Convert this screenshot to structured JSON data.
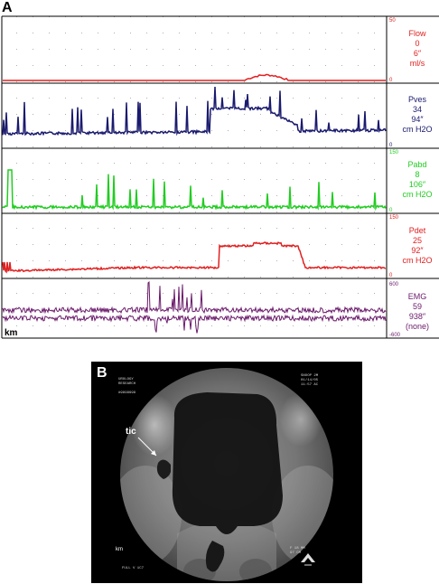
{
  "panel_a": {
    "letter": "A",
    "km_label": "km",
    "channels": [
      {
        "name": "Flow",
        "value": "0",
        "scale": "6″",
        "unit": "ml/s",
        "scale_top": "50",
        "scale_bottom": "0",
        "color": "#e02020"
      },
      {
        "name": "Pves",
        "value": "34",
        "scale": "94″",
        "unit": "cm H2O",
        "scale_top": "",
        "scale_bottom": "0",
        "color": "#1a1a6e"
      },
      {
        "name": "Pabd",
        "value": "8",
        "scale": "106″",
        "unit": "cm H2O",
        "scale_top": "150",
        "scale_bottom": "0",
        "color": "#22cc22"
      },
      {
        "name": "Pdet",
        "value": "25",
        "scale": "92″",
        "unit": "cm H2O",
        "scale_top": "150",
        "scale_bottom": "0",
        "color": "#e02020"
      },
      {
        "name": "EMG",
        "value": "59",
        "scale": "938″",
        "unit": "(none)",
        "scale_top": "600",
        "scale_bottom": "-600",
        "color": "#6a1a6a"
      }
    ]
  },
  "panel_b": {
    "letter": "B",
    "tic_label": "tic",
    "km_label": "km",
    "overlay_tl": "UROLOGY\nRESEARCH\n\n#9999999",
    "overlay_tr": "SNOOP 2M\n01/14/05\n11:57 AC",
    "overlay_bl": "FULL V 1C7",
    "overlay_br": "F 18 MM\n97 CM"
  }
}
